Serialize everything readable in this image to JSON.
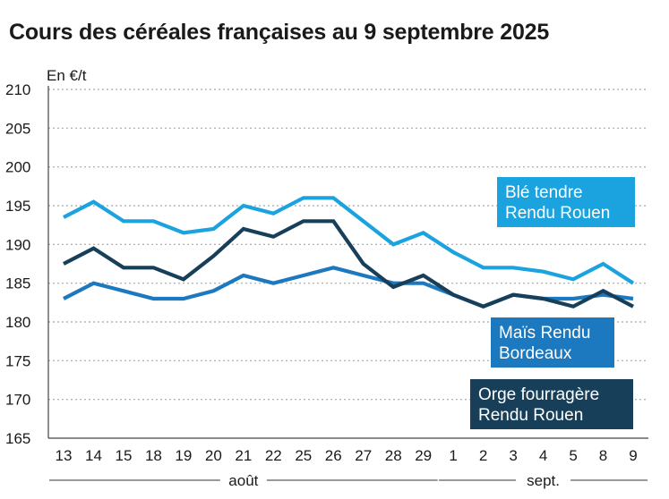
{
  "chart_data": {
    "type": "line",
    "title": "Cours des céréales françaises au 9 septembre 2025",
    "ylabel": "En €/t",
    "ylim": [
      165,
      210
    ],
    "yticks": [
      165,
      170,
      175,
      180,
      185,
      190,
      195,
      200,
      205,
      210
    ],
    "grid": true,
    "categories": [
      "13",
      "14",
      "15",
      "18",
      "19",
      "20",
      "21",
      "22",
      "25",
      "26",
      "27",
      "28",
      "29",
      "1",
      "2",
      "3",
      "4",
      "5",
      "8",
      "9"
    ],
    "month_groups": [
      {
        "label": "août",
        "start": "13",
        "end": "29"
      },
      {
        "label": "sept.",
        "start": "1",
        "end": "9"
      }
    ],
    "series": [
      {
        "name": "Blé tendre Rendu Rouen",
        "label_lines": [
          "Blé tendre",
          "Rendu Rouen"
        ],
        "color": "#1aa3df",
        "values": [
          193.5,
          195.5,
          193,
          193,
          191.5,
          192,
          195,
          194,
          196,
          196,
          193,
          190,
          191.5,
          189,
          187,
          187,
          186.5,
          185.5,
          187.5,
          185
        ]
      },
      {
        "name": "Maïs Rendu Bordeaux",
        "label_lines": [
          "Maïs Rendu",
          "Bordeaux"
        ],
        "color": "#1c78bf",
        "values": [
          183,
          185,
          184,
          183,
          183,
          184,
          186,
          185,
          186,
          187,
          186,
          185,
          185,
          183.5,
          182,
          183.5,
          183,
          183,
          183.5,
          183
        ]
      },
      {
        "name": "Orge fourragère Rendu Rouen",
        "label_lines": [
          "Orge fourragère",
          "Rendu Rouen"
        ],
        "color": "#183f5a",
        "values": [
          187.5,
          189.5,
          187,
          187,
          185.5,
          188.5,
          192,
          191,
          193,
          193,
          187.5,
          184.5,
          186,
          183.5,
          182,
          183.5,
          183,
          182,
          184,
          182
        ]
      }
    ]
  }
}
